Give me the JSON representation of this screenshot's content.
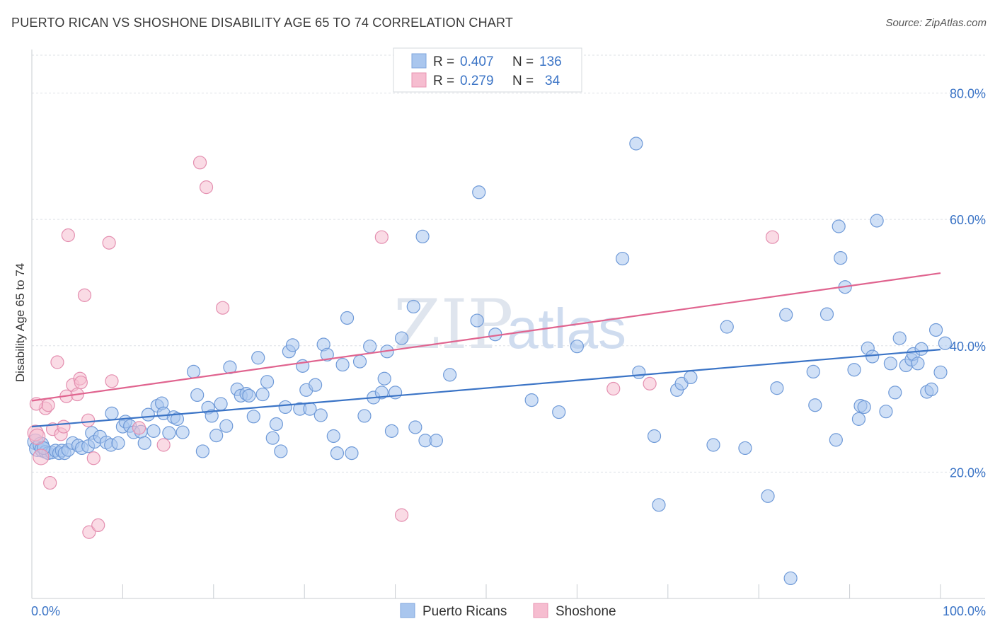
{
  "title": "PUERTO RICAN VS SHOSHONE DISABILITY AGE 65 TO 74 CORRELATION CHART",
  "source": "Source: ZipAtlas.com",
  "watermark": {
    "zip": "ZIP",
    "atlas": "atlas"
  },
  "colors": {
    "blue": "#3b74c6",
    "blue_fill": "#a9c6ee",
    "pink": "#e0648f",
    "pink_fill": "#f6bdd0",
    "grid": "#dde1e6"
  },
  "legend": {
    "rows": [
      {
        "r_label": "R =",
        "r_value": "0.407",
        "n_label": "N =",
        "n_value": "136"
      },
      {
        "r_label": "R =",
        "r_value": "0.279",
        "n_label": "N =",
        "n_value": "34"
      }
    ]
  },
  "bottom_legend": {
    "series1": "Puerto Ricans",
    "series2": "Shoshone"
  },
  "chart_data": {
    "type": "scatter",
    "title": "PUERTO RICAN VS SHOSHONE DISABILITY AGE 65 TO 74 CORRELATION CHART",
    "xlabel": "",
    "ylabel": "Disability Age 65 to 74",
    "xlim": [
      0,
      100
    ],
    "ylim": [
      0,
      86
    ],
    "y_ticks": [
      20,
      40,
      60,
      80
    ],
    "y_tick_labels": [
      "20.0%",
      "40.0%",
      "60.0%",
      "80.0%"
    ],
    "x_tick_labels": [
      "0.0%",
      "100.0%"
    ],
    "grid": true,
    "series": [
      {
        "name": "Puerto Ricans",
        "color": "#3b74c6",
        "trend": {
          "x": [
            0,
            100
          ],
          "y": [
            27.2,
            39.4
          ]
        },
        "points": [
          [
            0.4,
            24.8
          ],
          [
            0.6,
            23.7
          ],
          [
            1.0,
            24.3
          ],
          [
            1.2,
            23.6
          ],
          [
            1.5,
            23.2
          ],
          [
            1.8,
            23.0
          ],
          [
            2.2,
            23.1
          ],
          [
            2.6,
            23.4
          ],
          [
            3.0,
            23.0
          ],
          [
            3.3,
            23.4
          ],
          [
            3.6,
            23.0
          ],
          [
            4.0,
            23.5
          ],
          [
            4.5,
            24.6
          ],
          [
            5.1,
            24.2
          ],
          [
            5.5,
            23.8
          ],
          [
            6.2,
            24.1
          ],
          [
            6.6,
            26.2
          ],
          [
            6.9,
            24.8
          ],
          [
            7.5,
            25.6
          ],
          [
            8.2,
            24.7
          ],
          [
            8.7,
            24.3
          ],
          [
            8.8,
            29.3
          ],
          [
            9.5,
            24.6
          ],
          [
            10.0,
            27.2
          ],
          [
            10.3,
            28.0
          ],
          [
            10.8,
            27.3
          ],
          [
            11.2,
            26.3
          ],
          [
            12.0,
            26.4
          ],
          [
            12.4,
            24.6
          ],
          [
            12.8,
            29.1
          ],
          [
            13.4,
            26.5
          ],
          [
            13.8,
            30.5
          ],
          [
            14.3,
            30.9
          ],
          [
            14.5,
            29.3
          ],
          [
            15.1,
            26.2
          ],
          [
            15.6,
            28.7
          ],
          [
            16.0,
            28.4
          ],
          [
            16.6,
            26.3
          ],
          [
            17.8,
            35.9
          ],
          [
            18.2,
            32.2
          ],
          [
            18.8,
            23.3
          ],
          [
            19.4,
            30.2
          ],
          [
            19.8,
            28.9
          ],
          [
            20.3,
            25.8
          ],
          [
            20.8,
            30.8
          ],
          [
            21.4,
            27.3
          ],
          [
            21.8,
            36.6
          ],
          [
            22.6,
            33.1
          ],
          [
            23.0,
            32.1
          ],
          [
            23.6,
            32.4
          ],
          [
            23.9,
            32.1
          ],
          [
            24.4,
            28.8
          ],
          [
            24.9,
            38.1
          ],
          [
            25.4,
            32.3
          ],
          [
            25.9,
            34.3
          ],
          [
            26.5,
            25.4
          ],
          [
            26.9,
            27.6
          ],
          [
            27.4,
            23.3
          ],
          [
            27.9,
            30.3
          ],
          [
            28.3,
            39.1
          ],
          [
            28.7,
            40.1
          ],
          [
            29.5,
            30.0
          ],
          [
            29.8,
            36.8
          ],
          [
            30.2,
            33.0
          ],
          [
            30.6,
            30.0
          ],
          [
            31.2,
            33.8
          ],
          [
            31.8,
            29.0
          ],
          [
            32.1,
            40.2
          ],
          [
            32.5,
            38.6
          ],
          [
            33.2,
            25.7
          ],
          [
            33.6,
            23.0
          ],
          [
            34.2,
            37.0
          ],
          [
            34.7,
            44.4
          ],
          [
            35.2,
            23.0
          ],
          [
            36.1,
            37.5
          ],
          [
            36.6,
            28.9
          ],
          [
            37.2,
            39.9
          ],
          [
            37.6,
            31.8
          ],
          [
            38.5,
            32.6
          ],
          [
            38.8,
            34.8
          ],
          [
            39.1,
            39.1
          ],
          [
            39.6,
            26.5
          ],
          [
            40.0,
            32.6
          ],
          [
            40.7,
            41.2
          ],
          [
            42.0,
            46.2
          ],
          [
            42.2,
            27.1
          ],
          [
            43.0,
            57.3
          ],
          [
            43.3,
            25.0
          ],
          [
            44.5,
            25.0
          ],
          [
            46.0,
            35.4
          ],
          [
            49.0,
            44.0
          ],
          [
            49.2,
            64.3
          ],
          [
            51.0,
            41.8
          ],
          [
            55.0,
            31.4
          ],
          [
            58.0,
            29.5
          ],
          [
            60.0,
            39.9
          ],
          [
            65.0,
            53.8
          ],
          [
            66.5,
            72.0
          ],
          [
            66.8,
            35.8
          ],
          [
            68.5,
            25.7
          ],
          [
            69.0,
            14.8
          ],
          [
            71.0,
            33.0
          ],
          [
            71.5,
            34.0
          ],
          [
            72.5,
            35.0
          ],
          [
            75.0,
            24.3
          ],
          [
            76.5,
            43.0
          ],
          [
            78.5,
            23.8
          ],
          [
            81.0,
            16.2
          ],
          [
            82.0,
            33.3
          ],
          [
            83.0,
            44.9
          ],
          [
            83.5,
            3.2
          ],
          [
            86.0,
            35.9
          ],
          [
            86.2,
            30.6
          ],
          [
            87.5,
            45.0
          ],
          [
            88.5,
            25.1
          ],
          [
            88.8,
            58.9
          ],
          [
            89.0,
            53.9
          ],
          [
            89.5,
            49.3
          ],
          [
            90.5,
            36.2
          ],
          [
            91.0,
            28.4
          ],
          [
            91.2,
            30.5
          ],
          [
            91.6,
            30.3
          ],
          [
            92.0,
            39.6
          ],
          [
            92.5,
            38.3
          ],
          [
            93.0,
            59.8
          ],
          [
            94.0,
            29.6
          ],
          [
            94.5,
            37.2
          ],
          [
            95.0,
            32.6
          ],
          [
            95.5,
            41.2
          ],
          [
            96.2,
            36.9
          ],
          [
            96.8,
            37.8
          ],
          [
            97.0,
            38.7
          ],
          [
            97.5,
            37.2
          ],
          [
            97.9,
            39.5
          ],
          [
            98.5,
            32.7
          ],
          [
            99.0,
            33.1
          ],
          [
            99.5,
            42.5
          ],
          [
            100.0,
            35.8
          ],
          [
            100.5,
            40.4
          ],
          [
            1.3,
            23.8
          ]
        ]
      },
      {
        "name": "Shoshone",
        "color": "#e0648f",
        "trend": {
          "x": [
            0,
            100
          ],
          "y": [
            31.3,
            51.5
          ]
        },
        "points": [
          [
            0.4,
            26.2
          ],
          [
            0.6,
            25.6
          ],
          [
            1.0,
            22.4
          ],
          [
            1.5,
            30.1
          ],
          [
            1.8,
            30.6
          ],
          [
            2.0,
            18.3
          ],
          [
            2.3,
            26.8
          ],
          [
            2.8,
            37.4
          ],
          [
            3.2,
            26.0
          ],
          [
            3.5,
            27.2
          ],
          [
            3.8,
            32.0
          ],
          [
            4.0,
            57.5
          ],
          [
            4.5,
            33.8
          ],
          [
            5.0,
            32.3
          ],
          [
            5.3,
            34.8
          ],
          [
            5.4,
            34.2
          ],
          [
            5.8,
            48.0
          ],
          [
            6.2,
            28.2
          ],
          [
            6.3,
            10.5
          ],
          [
            6.8,
            22.2
          ],
          [
            7.3,
            11.6
          ],
          [
            8.5,
            56.3
          ],
          [
            8.8,
            34.4
          ],
          [
            11.8,
            27.0
          ],
          [
            14.5,
            24.3
          ],
          [
            18.5,
            69.0
          ],
          [
            19.2,
            65.1
          ],
          [
            21.0,
            46.0
          ],
          [
            38.5,
            57.2
          ],
          [
            40.7,
            13.2
          ],
          [
            64.0,
            33.2
          ],
          [
            68.0,
            34.0
          ],
          [
            81.5,
            57.2
          ],
          [
            0.5,
            30.8
          ]
        ]
      }
    ]
  }
}
